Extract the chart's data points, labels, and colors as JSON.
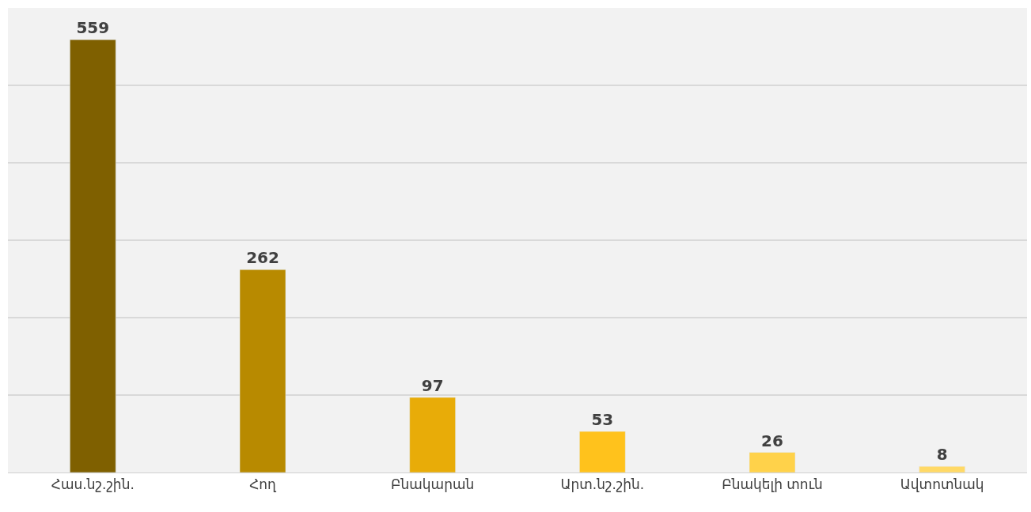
{
  "chart_data": {
    "type": "bar",
    "categories": [
      "Հաս.նշ.շին.",
      "Հող",
      "Բնակարան",
      "Արտ.նշ.շին.",
      "Բնակելի տուն",
      "Ավտոտնակ"
    ],
    "values": [
      559,
      262,
      97,
      53,
      26,
      8
    ],
    "colors": [
      "#7f6000",
      "#b88a00",
      "#e8ac08",
      "#ffc21c",
      "#ffd24a",
      "#ffd966"
    ],
    "ylim": [
      0,
      600
    ],
    "yticks": [
      {
        "value": 0,
        "label": null
      },
      {
        "value": 100,
        "label": null
      },
      {
        "value": 200,
        "label": null
      },
      {
        "value": 300,
        "label": null
      },
      {
        "value": 400,
        "label": null
      },
      {
        "value": 500,
        "label": null
      },
      {
        "value": 600,
        "label": null
      }
    ],
    "tick_labels": "x",
    "grid": "y",
    "data_labels": true
  }
}
